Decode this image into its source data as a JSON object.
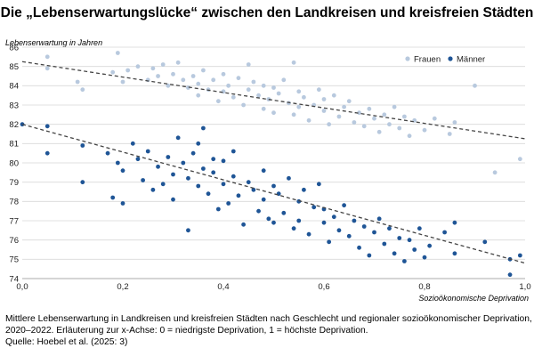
{
  "chart_data": {
    "type": "scatter",
    "title": "Die „Lebenserwartungslücke“ zwischen den Landkreisen und kreisfreien Städten",
    "ylabel": "Lebenserwartung in Jahren",
    "xlabel": "Sozioökonomische Deprivation",
    "xlim": [
      0,
      1
    ],
    "ylim": [
      74,
      86
    ],
    "x_ticks": [
      "0,0",
      "0,2",
      "0,4",
      "0,6",
      "0,8",
      "1,0"
    ],
    "x_tick_values": [
      0,
      0.2,
      0.4,
      0.6,
      0.8,
      1.0
    ],
    "y_ticks": [
      "74",
      "75",
      "76",
      "77",
      "78",
      "79",
      "80",
      "81",
      "82",
      "83",
      "84",
      "85",
      "86"
    ],
    "y_tick_values": [
      74,
      75,
      76,
      77,
      78,
      79,
      80,
      81,
      82,
      83,
      84,
      85,
      86
    ],
    "grid": "horizontal",
    "legend_position": "top-right",
    "series": [
      {
        "name": "Frauen",
        "color": "#b8c9de",
        "trend": {
          "start": [
            0,
            85.25
          ],
          "end": [
            1,
            81.25
          ]
        },
        "points": [
          [
            0.05,
            85.5
          ],
          [
            0.05,
            84.9
          ],
          [
            0.11,
            84.2
          ],
          [
            0.12,
            83.8
          ],
          [
            0.18,
            84.7
          ],
          [
            0.19,
            85.7
          ],
          [
            0.2,
            84.2
          ],
          [
            0.21,
            84.8
          ],
          [
            0.23,
            85.0
          ],
          [
            0.25,
            84.3
          ],
          [
            0.26,
            84.9
          ],
          [
            0.27,
            84.5
          ],
          [
            0.28,
            85.1
          ],
          [
            0.29,
            84.0
          ],
          [
            0.3,
            84.6
          ],
          [
            0.31,
            85.2
          ],
          [
            0.32,
            84.3
          ],
          [
            0.33,
            83.9
          ],
          [
            0.34,
            84.5
          ],
          [
            0.35,
            84.1
          ],
          [
            0.35,
            83.5
          ],
          [
            0.36,
            84.8
          ],
          [
            0.37,
            83.8
          ],
          [
            0.38,
            84.3
          ],
          [
            0.39,
            83.2
          ],
          [
            0.4,
            84.6
          ],
          [
            0.4,
            83.7
          ],
          [
            0.41,
            84.0
          ],
          [
            0.42,
            83.4
          ],
          [
            0.43,
            84.4
          ],
          [
            0.44,
            83.0
          ],
          [
            0.45,
            83.8
          ],
          [
            0.46,
            84.2
          ],
          [
            0.47,
            83.5
          ],
          [
            0.48,
            82.8
          ],
          [
            0.48,
            84.0
          ],
          [
            0.49,
            83.3
          ],
          [
            0.5,
            83.9
          ],
          [
            0.5,
            82.6
          ],
          [
            0.51,
            83.6
          ],
          [
            0.52,
            84.3
          ],
          [
            0.53,
            83.1
          ],
          [
            0.54,
            82.5
          ],
          [
            0.55,
            83.7
          ],
          [
            0.55,
            82.9
          ],
          [
            0.56,
            83.4
          ],
          [
            0.57,
            82.2
          ],
          [
            0.58,
            83.0
          ],
          [
            0.59,
            83.8
          ],
          [
            0.6,
            82.7
          ],
          [
            0.6,
            83.3
          ],
          [
            0.61,
            82.0
          ],
          [
            0.62,
            83.5
          ],
          [
            0.63,
            82.4
          ],
          [
            0.64,
            82.9
          ],
          [
            0.65,
            83.2
          ],
          [
            0.66,
            82.1
          ],
          [
            0.67,
            82.6
          ],
          [
            0.68,
            81.9
          ],
          [
            0.69,
            82.8
          ],
          [
            0.7,
            82.3
          ],
          [
            0.71,
            81.6
          ],
          [
            0.72,
            82.5
          ],
          [
            0.73,
            82.0
          ],
          [
            0.74,
            82.9
          ],
          [
            0.75,
            81.8
          ],
          [
            0.76,
            82.4
          ],
          [
            0.77,
            81.4
          ],
          [
            0.78,
            82.2
          ],
          [
            0.8,
            81.7
          ],
          [
            0.82,
            82.3
          ],
          [
            0.85,
            81.5
          ],
          [
            0.86,
            82.1
          ],
          [
            0.9,
            84.0
          ],
          [
            0.94,
            79.5
          ],
          [
            0.99,
            80.2
          ],
          [
            0.54,
            85.2
          ],
          [
            0.45,
            85.1
          ]
        ]
      },
      {
        "name": "Männer",
        "color": "#1f5596",
        "trend": {
          "start": [
            0,
            82.0
          ],
          "end": [
            1,
            74.8
          ]
        },
        "points": [
          [
            0.0,
            82.0
          ],
          [
            0.05,
            81.9
          ],
          [
            0.05,
            80.5
          ],
          [
            0.12,
            80.9
          ],
          [
            0.12,
            79.0
          ],
          [
            0.17,
            80.5
          ],
          [
            0.18,
            78.2
          ],
          [
            0.19,
            80.0
          ],
          [
            0.2,
            79.6
          ],
          [
            0.2,
            77.9
          ],
          [
            0.22,
            81.0
          ],
          [
            0.23,
            80.2
          ],
          [
            0.24,
            79.1
          ],
          [
            0.25,
            80.6
          ],
          [
            0.26,
            78.6
          ],
          [
            0.27,
            79.8
          ],
          [
            0.28,
            78.9
          ],
          [
            0.29,
            80.3
          ],
          [
            0.3,
            79.4
          ],
          [
            0.3,
            78.1
          ],
          [
            0.31,
            81.3
          ],
          [
            0.32,
            80.0
          ],
          [
            0.33,
            79.2
          ],
          [
            0.33,
            76.5
          ],
          [
            0.34,
            80.5
          ],
          [
            0.35,
            78.8
          ],
          [
            0.36,
            79.7
          ],
          [
            0.36,
            81.8
          ],
          [
            0.37,
            78.4
          ],
          [
            0.38,
            79.5
          ],
          [
            0.39,
            77.6
          ],
          [
            0.4,
            80.1
          ],
          [
            0.4,
            78.9
          ],
          [
            0.41,
            77.9
          ],
          [
            0.42,
            79.3
          ],
          [
            0.43,
            78.3
          ],
          [
            0.44,
            76.8
          ],
          [
            0.45,
            79.0
          ],
          [
            0.46,
            78.6
          ],
          [
            0.47,
            77.5
          ],
          [
            0.48,
            79.6
          ],
          [
            0.48,
            78.1
          ],
          [
            0.49,
            77.1
          ],
          [
            0.5,
            78.8
          ],
          [
            0.5,
            76.9
          ],
          [
            0.51,
            78.4
          ],
          [
            0.52,
            77.4
          ],
          [
            0.53,
            79.2
          ],
          [
            0.54,
            76.6
          ],
          [
            0.55,
            78.0
          ],
          [
            0.55,
            77.0
          ],
          [
            0.56,
            78.6
          ],
          [
            0.57,
            76.3
          ],
          [
            0.58,
            77.7
          ],
          [
            0.59,
            78.9
          ],
          [
            0.6,
            76.9
          ],
          [
            0.6,
            77.6
          ],
          [
            0.61,
            75.9
          ],
          [
            0.62,
            77.2
          ],
          [
            0.63,
            76.5
          ],
          [
            0.64,
            77.8
          ],
          [
            0.65,
            76.2
          ],
          [
            0.66,
            77.0
          ],
          [
            0.67,
            75.6
          ],
          [
            0.68,
            76.7
          ],
          [
            0.69,
            75.2
          ],
          [
            0.7,
            76.4
          ],
          [
            0.71,
            77.1
          ],
          [
            0.72,
            75.8
          ],
          [
            0.73,
            76.6
          ],
          [
            0.74,
            75.3
          ],
          [
            0.75,
            76.1
          ],
          [
            0.76,
            74.9
          ],
          [
            0.77,
            76.0
          ],
          [
            0.78,
            75.5
          ],
          [
            0.79,
            76.6
          ],
          [
            0.8,
            75.1
          ],
          [
            0.81,
            75.7
          ],
          [
            0.84,
            76.4
          ],
          [
            0.86,
            76.9
          ],
          [
            0.86,
            75.3
          ],
          [
            0.92,
            75.9
          ],
          [
            0.97,
            75.0
          ],
          [
            0.97,
            74.2
          ],
          [
            0.99,
            75.2
          ],
          [
            0.35,
            81.0
          ],
          [
            0.42,
            80.6
          ],
          [
            0.38,
            80.2
          ]
        ]
      }
    ]
  },
  "caption": {
    "line1": "Mittlere Lebenserwartung in Landkreisen und kreisfreien Städten nach Geschlecht und regionaler sozioökonomischer Deprivation,",
    "line2": "2020–2022. Erläuterung zur x-Achse: 0 = niedrigste Deprivation, 1 = höchste Deprivation.",
    "line3": "Quelle: Hoebel et al. (2025: 3)"
  }
}
